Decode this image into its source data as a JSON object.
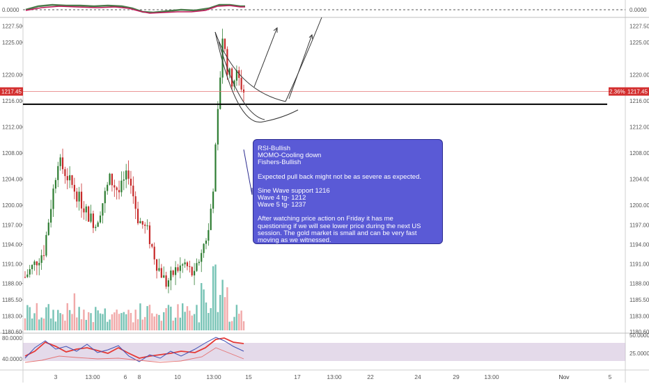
{
  "chart_data": [
    {
      "id": "top-oscillator",
      "type": "line",
      "y_ticks": [
        "0.0000"
      ],
      "right_ticks": [
        "0.0000"
      ],
      "zero_line": "dashed",
      "series": [
        {
          "color": "#4a7a4a"
        },
        {
          "color": "#c2185b"
        }
      ]
    },
    {
      "id": "price",
      "type": "candlestick",
      "y_ticks": [
        "1227.50",
        "1225.00",
        "1220.00",
        "1216.00",
        "1212.00",
        "1208.00",
        "1204.00",
        "1200.00",
        "1197.00",
        "1194.00",
        "1191.00",
        "1188.00",
        "1185.50",
        "1183.00",
        "1180.60"
      ],
      "ylim": [
        1180.6,
        1228.6
      ],
      "x_ticks": [
        "3",
        "13:00",
        "6",
        "8",
        "10",
        "13:00",
        "15",
        "17",
        "13:00",
        "22",
        "24",
        "29",
        "13:00",
        "Nov",
        "5"
      ],
      "last_price_label": "1217.45",
      "last_price": 1217.45,
      "right_tag": "2.36%",
      "support_level": 1215.5,
      "colors": {
        "up": "#2e7d32",
        "down": "#c62828",
        "vol_up": "#5fb8a8",
        "vol_down": "#ef9a9a",
        "price_line": "#e57373",
        "support": "#000000"
      },
      "candles_summary": [
        {
          "seg": "early",
          "start": 1189,
          "end": 1206
        },
        {
          "seg": "mid",
          "start": 1206,
          "end": 1187
        },
        {
          "seg": "rally",
          "start": 1187,
          "end": 1226
        },
        {
          "seg": "latest",
          "start": 1226,
          "end": 1217.45
        }
      ]
    },
    {
      "id": "rsi-panel",
      "type": "line",
      "y_ticks": [
        "80.0000",
        "40.0000"
      ],
      "right_ticks": [
        "50.0000",
        "25.0000"
      ],
      "series": [
        {
          "color": "#e53935"
        },
        {
          "color": "#3f51b5"
        },
        {
          "color": "#e57373"
        }
      ]
    }
  ],
  "annotation": {
    "lines": [
      "RSI-Bullish",
      "MOMO-Cooling down",
      "Fishers-Bullish",
      "",
      "Expected  pull back might not be as severe as expected.",
      "",
      "Sine Wave support 1216",
      "Wave 4 tg- 1212",
      "Wave 5 tg- 1237",
      ""
    ],
    "paragraph": "After watching price action on Friday it has me questioning if we will see lower price during the next US session. The gold market is small and can be very fast moving as we witnessed.",
    "bg_color": "#5a5ad6"
  }
}
